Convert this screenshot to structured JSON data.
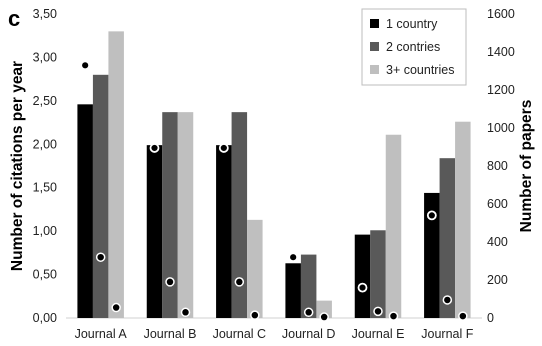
{
  "panel_letter": "c",
  "chart_data": {
    "type": "bar",
    "categories": [
      "Journal A",
      "Journal B",
      "Journal C",
      "Journal D",
      "Journal E",
      "Journal F"
    ],
    "series": [
      {
        "name": "1 country",
        "color": "#000000",
        "values": [
          2.46,
          1.99,
          1.99,
          0.63,
          0.96,
          1.44
        ]
      },
      {
        "name": "2 contries",
        "color": "#595959",
        "values": [
          2.8,
          2.37,
          2.37,
          0.73,
          1.01,
          1.84
        ]
      },
      {
        "name": "3+ countries",
        "color": "#bfbfbf",
        "values": [
          3.3,
          2.37,
          1.13,
          0.2,
          2.11,
          2.26
        ]
      }
    ],
    "papers_markers": [
      {
        "category": "Journal A",
        "series": "1 country",
        "value": 1330
      },
      {
        "category": "Journal A",
        "series": "2 contries",
        "value": 320
      },
      {
        "category": "Journal A",
        "series": "3+ countries",
        "value": 55
      },
      {
        "category": "Journal B",
        "series": "1 country",
        "value": 895
      },
      {
        "category": "Journal B",
        "series": "2 contries",
        "value": 190
      },
      {
        "category": "Journal B",
        "series": "3+ countries",
        "value": 30
      },
      {
        "category": "Journal C",
        "series": "1 country",
        "value": 895
      },
      {
        "category": "Journal C",
        "series": "2 contries",
        "value": 190
      },
      {
        "category": "Journal C",
        "series": "3+ countries",
        "value": 15
      },
      {
        "category": "Journal D",
        "series": "1 country",
        "value": 320
      },
      {
        "category": "Journal D",
        "series": "2 contries",
        "value": 30
      },
      {
        "category": "Journal D",
        "series": "3+ countries",
        "value": 5
      },
      {
        "category": "Journal E",
        "series": "1 country",
        "value": 160
      },
      {
        "category": "Journal E",
        "series": "2 contries",
        "value": 35
      },
      {
        "category": "Journal E",
        "series": "3+ countries",
        "value": 10
      },
      {
        "category": "Journal F",
        "series": "1 country",
        "value": 540
      },
      {
        "category": "Journal F",
        "series": "2 contries",
        "value": 95
      },
      {
        "category": "Journal F",
        "series": "3+ countries",
        "value": 10
      }
    ],
    "ylabel": "Number of citations per year",
    "ylabel_right": "Number of papers",
    "ylim": [
      0,
      3.5
    ],
    "ylim_right": [
      0,
      1600
    ],
    "yticks": [
      "0,00",
      "0,50",
      "1,00",
      "1,50",
      "2,00",
      "2,50",
      "3,00",
      "3,50"
    ],
    "yticks_values": [
      0,
      0.5,
      1,
      1.5,
      2,
      2.5,
      3,
      3.5
    ],
    "yticks_right": [
      "0",
      "200",
      "400",
      "600",
      "800",
      "1000",
      "1200",
      "1400",
      "1600"
    ],
    "yticks_right_values": [
      0,
      200,
      400,
      600,
      800,
      1000,
      1200,
      1400,
      1600
    ],
    "grid": false,
    "legend_position": "top-right"
  }
}
